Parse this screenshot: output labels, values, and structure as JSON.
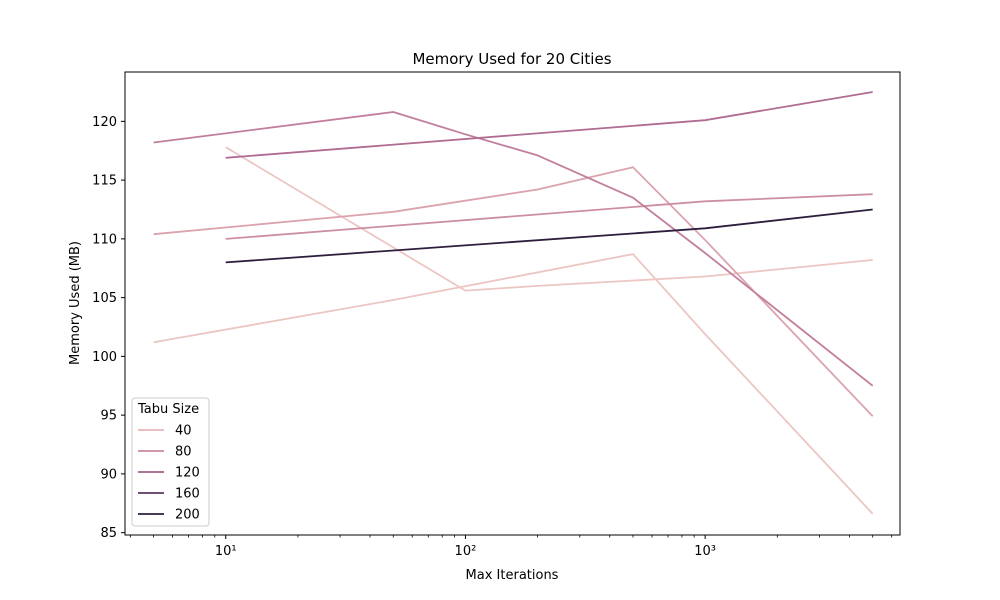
{
  "chart_data": {
    "type": "line",
    "title": "Memory Used for 20 Cities",
    "xlabel": "Max Iterations",
    "ylabel": "Memory Used (MB)",
    "xscale": "log",
    "xlim": [
      3.8,
      6500
    ],
    "ylim": [
      84.8,
      124.2
    ],
    "yticks": [
      85,
      90,
      95,
      100,
      105,
      110,
      115,
      120
    ],
    "xticks": [
      {
        "value": 10,
        "label": "10¹"
      },
      {
        "value": 100,
        "label": "10²"
      },
      {
        "value": 1000,
        "label": "10³"
      }
    ],
    "grid": false,
    "legend": {
      "title": "Tabu Size",
      "placement": "lower-left",
      "entries": [
        {
          "label": "40",
          "color": "#e8b4b6"
        },
        {
          "label": "80",
          "color": "#c98a9e"
        },
        {
          "label": "120",
          "color": "#a35f8c"
        },
        {
          "label": "160",
          "color": "#5c3660"
        },
        {
          "label": "200",
          "color": "#2d1e3e"
        }
      ]
    },
    "series": [
      {
        "color": "#ecc6c3",
        "x": [
          5,
          50,
          500,
          1000,
          5000
        ],
        "values": [
          101.2,
          104.8,
          108.7,
          101.9,
          86.6
        ]
      },
      {
        "color": "#ecc6c3",
        "x": [
          10,
          100,
          200,
          1000,
          5000
        ],
        "values": [
          117.8,
          105.6,
          106.0,
          106.8,
          108.2
        ]
      },
      {
        "color": "#dba3ae",
        "x": [
          5,
          50,
          200,
          500,
          1000,
          5000
        ],
        "values": [
          110.4,
          112.3,
          114.2,
          116.1,
          109.9,
          94.9
        ]
      },
      {
        "color": "#cc8fa2",
        "x": [
          10,
          1000,
          5000
        ],
        "values": [
          110.0,
          113.2,
          113.8
        ]
      },
      {
        "color": "#c17f9d",
        "x": [
          5,
          50,
          100,
          200,
          500,
          1000,
          5000
        ],
        "values": [
          118.2,
          120.8,
          118.9,
          117.1,
          113.5,
          108.8,
          97.5
        ]
      },
      {
        "color": "#b06c93",
        "x": [
          10,
          1000,
          5000
        ],
        "values": [
          116.9,
          120.1,
          122.5
        ]
      },
      {
        "color": "#2d1e3e",
        "x": [
          10,
          1000,
          5000
        ],
        "values": [
          108.0,
          110.9,
          112.5
        ]
      }
    ]
  }
}
